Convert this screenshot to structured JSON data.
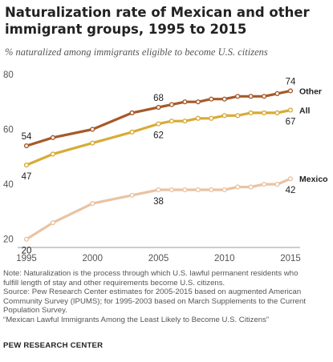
{
  "chart_data": {
    "type": "line",
    "title": "Naturalization rate of Mexican and other immigrant groups, 1995 to 2015",
    "subtitle": "% naturalized among immigrants eligible to become U.S. citizens",
    "x": [
      1995,
      1997,
      2000,
      2003,
      2005,
      2006,
      2007,
      2008,
      2009,
      2010,
      2011,
      2012,
      2013,
      2014,
      2015
    ],
    "xticks": [
      1995,
      2000,
      2005,
      2010,
      2015
    ],
    "yticks": [
      20,
      40,
      60,
      80
    ],
    "ylim": [
      17,
      82
    ],
    "xlim": [
      1995,
      2015
    ],
    "grid": false,
    "legend": "direct labels at right",
    "series": [
      {
        "name": "Other",
        "color": "#a65a28",
        "values": [
          54,
          57,
          60,
          66,
          68,
          69,
          70,
          70,
          71,
          71,
          72,
          72,
          72,
          73,
          74
        ],
        "labels": [
          {
            "x": 1995,
            "text": "54",
            "pos": "above"
          },
          {
            "x": 2005,
            "text": "68",
            "pos": "above"
          },
          {
            "x": 2015,
            "text": "74",
            "pos": "above"
          }
        ]
      },
      {
        "name": "All",
        "color": "#d8ab38",
        "values": [
          47,
          51,
          55,
          59,
          62,
          63,
          63,
          64,
          64,
          65,
          65,
          66,
          66,
          66,
          67
        ],
        "labels": [
          {
            "x": 1995,
            "text": "47",
            "pos": "below"
          },
          {
            "x": 2005,
            "text": "62",
            "pos": "below"
          },
          {
            "x": 2015,
            "text": "67",
            "pos": "below"
          }
        ]
      },
      {
        "name": "Mexico",
        "color": "#eac3a3",
        "values": [
          20,
          26,
          33,
          36,
          38,
          38,
          38,
          38,
          38,
          38,
          39,
          39,
          40,
          40,
          42
        ],
        "labels": [
          {
            "x": 1995,
            "text": "20",
            "pos": "below"
          },
          {
            "x": 2005,
            "text": "38",
            "pos": "below"
          },
          {
            "x": 2015,
            "text": "42",
            "pos": "below"
          }
        ]
      }
    ]
  },
  "notes": [
    "Note: Naturalization is the process through which U.S. lawful permanent residents who",
    "fulfill length of stay and other requirements become U.S. citizens.",
    "Source: Pew Research Center estimates for 2005-2015 based on augmented American",
    "Community Survey (IPUMS); for 1995-2003 based on March Supplements to the Current",
    "Population Survey.",
    "“Mexican Lawful Immigrants Among the Least Likely to Become U.S. Citizens”"
  ],
  "source_org": "PEW RESEARCH CENTER"
}
